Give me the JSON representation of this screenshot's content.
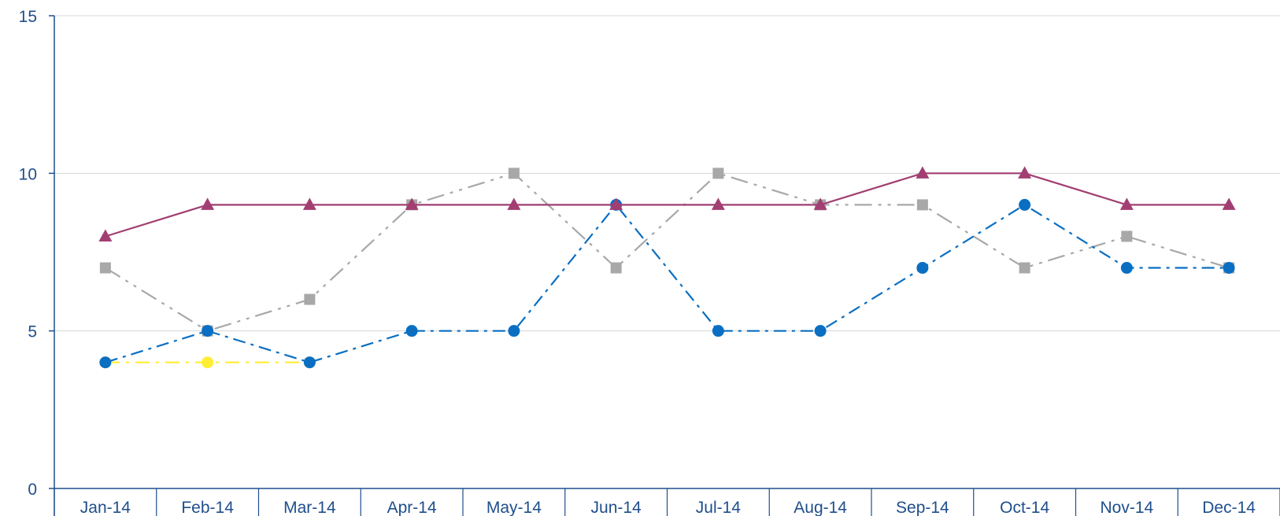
{
  "chart_data": {
    "type": "line",
    "ylim": [
      0,
      15
    ],
    "yticks": [
      0,
      5,
      10,
      15
    ],
    "grid": true,
    "categories": [
      "Jan-14",
      "Feb-14",
      "Mar-14",
      "Apr-14",
      "May-14",
      "Jun-14",
      "Jul-14",
      "Aug-14",
      "Sep-14",
      "Oct-14",
      "Nov-14",
      "Dec-14"
    ],
    "series": [
      {
        "color": "#a8a8a8",
        "dash": "22 8 4 8 4 8",
        "marker": "square",
        "values": [
          7,
          5,
          6,
          9,
          10,
          7,
          10,
          9,
          9,
          7,
          8,
          7
        ]
      },
      {
        "color": "#ffee33",
        "dash": "18 8 4 8",
        "marker": "circle",
        "values": [
          4,
          4,
          4,
          null,
          null,
          null,
          null,
          null,
          null,
          null,
          null,
          null
        ]
      },
      {
        "color": "#0a6fc2",
        "dash": "16 7 4 7",
        "marker": "circle",
        "values": [
          4,
          5,
          4,
          5,
          5,
          9,
          5,
          5,
          7,
          9,
          7,
          7
        ]
      },
      {
        "color": "#a23e72",
        "dash": "",
        "marker": "triangle",
        "values": [
          8,
          9,
          9,
          9,
          9,
          9,
          9,
          9,
          10,
          10,
          9,
          9
        ]
      }
    ]
  }
}
